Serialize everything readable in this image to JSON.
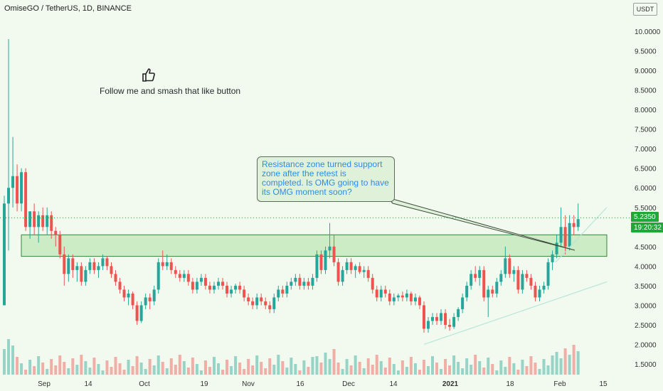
{
  "header": {
    "title": "OmiseGO / TetherUS, 1D, BINANCE"
  },
  "annotations": {
    "follow_text": "Follow me and smash that like button",
    "thumb_icon": "thumbs-up-icon",
    "callout_text": "Resistance zone turned support zone after the retest is completed.  Is OMG going to have its OMG moment soon?"
  },
  "price_axis": {
    "currency": "USDT",
    "last_price": "5.2350",
    "countdown": "19:20:32"
  },
  "colors": {
    "up": "#26a69a",
    "down": "#ef5350",
    "zone_fill": "#c9ecc3",
    "zone_border": "#2e7d32",
    "last_price_tag": "#1ea83a"
  },
  "chart_data": {
    "type": "candlestick",
    "symbol": "OMG/USDT",
    "timeframe": "1D",
    "exchange": "BINANCE",
    "y_ticks": [
      "10.0000",
      "9.5000",
      "9.0000",
      "8.5000",
      "8.0000",
      "7.5000",
      "7.0000",
      "6.5000",
      "6.0000",
      "5.5000",
      "5.0000",
      "4.5000",
      "4.0000",
      "3.5000",
      "3.0000",
      "2.5000",
      "2.0000",
      "1.5000"
    ],
    "x_ticks": [
      "Sep",
      "14",
      "Oct",
      "19",
      "Nov",
      "16",
      "Dec",
      "14",
      "2021",
      "18",
      "Feb",
      "15"
    ],
    "ylim": [
      1.25,
      10.4
    ],
    "resistance_support_zone": [
      4.25,
      4.8
    ],
    "support_trendline": [
      {
        "date": "2020-12-18",
        "price": 2.0
      },
      {
        "date": "2021-02-18",
        "price": 3.6
      }
    ],
    "upper_trendline": [
      {
        "date": "2021-02-03",
        "price": 4.1
      },
      {
        "date": "2021-02-18",
        "price": 5.5
      }
    ],
    "last_price": 5.235,
    "ohlc": [
      [
        3.0,
        5.8,
        3.0,
        5.6
      ],
      [
        5.6,
        9.8,
        4.4,
        6.0
      ],
      [
        6.0,
        7.3,
        5.5,
        6.3
      ],
      [
        6.3,
        6.6,
        5.4,
        5.6
      ],
      [
        5.6,
        6.5,
        5.4,
        6.4
      ],
      [
        6.4,
        6.5,
        4.9,
        5.0
      ],
      [
        5.0,
        5.4,
        4.7,
        5.4
      ],
      [
        5.4,
        5.6,
        4.8,
        5.0
      ],
      [
        5.0,
        5.4,
        4.6,
        5.3
      ],
      [
        5.3,
        5.5,
        4.9,
        5.0
      ],
      [
        5.0,
        5.5,
        4.8,
        5.3
      ],
      [
        5.3,
        5.4,
        4.7,
        4.9
      ],
      [
        4.9,
        5.0,
        4.5,
        4.8
      ],
      [
        4.8,
        4.9,
        4.2,
        4.3
      ],
      [
        4.3,
        4.5,
        3.5,
        3.8
      ],
      [
        3.8,
        4.3,
        3.6,
        4.2
      ],
      [
        4.2,
        4.3,
        3.7,
        3.9
      ],
      [
        3.9,
        4.1,
        3.6,
        4.0
      ],
      [
        4.0,
        4.1,
        3.5,
        3.6
      ],
      [
        3.6,
        4.0,
        3.5,
        3.9
      ],
      [
        3.9,
        4.2,
        3.8,
        4.1
      ],
      [
        4.1,
        4.2,
        3.8,
        3.9
      ],
      [
        3.9,
        4.1,
        3.7,
        4.0
      ],
      [
        4.0,
        4.3,
        3.9,
        4.2
      ],
      [
        4.2,
        4.25,
        3.9,
        4.0
      ],
      [
        4.0,
        4.1,
        3.7,
        3.8
      ],
      [
        3.8,
        3.9,
        3.5,
        3.6
      ],
      [
        3.6,
        3.7,
        3.3,
        3.4
      ],
      [
        3.4,
        3.5,
        3.1,
        3.2
      ],
      [
        3.2,
        3.4,
        3.0,
        3.3
      ],
      [
        3.3,
        3.35,
        2.9,
        3.0
      ],
      [
        3.0,
        3.1,
        2.5,
        2.6
      ],
      [
        2.6,
        3.1,
        2.55,
        3.0
      ],
      [
        3.0,
        3.3,
        2.9,
        3.2
      ],
      [
        3.2,
        3.3,
        2.9,
        3.1
      ],
      [
        3.1,
        3.5,
        3.0,
        3.4
      ],
      [
        3.4,
        4.2,
        3.3,
        4.1
      ],
      [
        4.1,
        4.4,
        3.9,
        4.0
      ],
      [
        4.0,
        4.3,
        3.9,
        4.1
      ],
      [
        4.1,
        4.2,
        3.8,
        3.9
      ],
      [
        3.9,
        4.0,
        3.7,
        3.8
      ],
      [
        3.8,
        3.9,
        3.6,
        3.7
      ],
      [
        3.7,
        3.9,
        3.6,
        3.8
      ],
      [
        3.8,
        3.9,
        3.5,
        3.6
      ],
      [
        3.6,
        3.7,
        3.3,
        3.4
      ],
      [
        3.4,
        3.7,
        3.3,
        3.6
      ],
      [
        3.6,
        3.8,
        3.5,
        3.7
      ],
      [
        3.7,
        3.8,
        3.4,
        3.5
      ],
      [
        3.5,
        3.6,
        3.3,
        3.4
      ],
      [
        3.4,
        3.6,
        3.3,
        3.5
      ],
      [
        3.5,
        3.7,
        3.4,
        3.6
      ],
      [
        3.6,
        3.7,
        3.4,
        3.5
      ],
      [
        3.5,
        3.6,
        3.2,
        3.3
      ],
      [
        3.3,
        3.5,
        3.2,
        3.4
      ],
      [
        3.4,
        3.55,
        3.3,
        3.5
      ],
      [
        3.5,
        3.6,
        3.3,
        3.4
      ],
      [
        3.4,
        3.5,
        3.1,
        3.2
      ],
      [
        3.2,
        3.3,
        3.0,
        3.1
      ],
      [
        3.1,
        3.2,
        2.9,
        3.0
      ],
      [
        3.0,
        3.3,
        2.9,
        3.2
      ],
      [
        3.2,
        3.3,
        3.0,
        3.1
      ],
      [
        3.1,
        3.2,
        2.9,
        3.0
      ],
      [
        3.0,
        3.1,
        2.8,
        2.9
      ],
      [
        2.9,
        3.3,
        2.8,
        3.2
      ],
      [
        3.2,
        3.5,
        3.1,
        3.4
      ],
      [
        3.4,
        3.5,
        3.2,
        3.3
      ],
      [
        3.3,
        3.6,
        3.2,
        3.5
      ],
      [
        3.5,
        3.7,
        3.4,
        3.6
      ],
      [
        3.6,
        3.8,
        3.5,
        3.7
      ],
      [
        3.7,
        3.8,
        3.4,
        3.5
      ],
      [
        3.5,
        3.7,
        3.4,
        3.6
      ],
      [
        3.6,
        3.7,
        3.4,
        3.5
      ],
      [
        3.5,
        3.8,
        3.4,
        3.7
      ],
      [
        3.7,
        4.4,
        3.6,
        4.3
      ],
      [
        4.3,
        4.4,
        3.8,
        3.9
      ],
      [
        3.9,
        4.5,
        3.8,
        4.4
      ],
      [
        4.4,
        5.1,
        4.2,
        4.5
      ],
      [
        4.5,
        4.8,
        4.0,
        4.1
      ],
      [
        4.1,
        4.2,
        3.5,
        3.6
      ],
      [
        3.6,
        4.0,
        3.5,
        3.9
      ],
      [
        3.9,
        4.2,
        3.8,
        4.1
      ],
      [
        4.1,
        4.2,
        3.8,
        3.9
      ],
      [
        3.9,
        4.05,
        3.7,
        4.0
      ],
      [
        4.0,
        4.1,
        3.8,
        3.85
      ],
      [
        3.85,
        4.0,
        3.7,
        3.9
      ],
      [
        3.9,
        4.0,
        3.6,
        3.7
      ],
      [
        3.7,
        3.8,
        3.3,
        3.4
      ],
      [
        3.4,
        3.5,
        3.1,
        3.2
      ],
      [
        3.2,
        3.5,
        3.1,
        3.4
      ],
      [
        3.4,
        3.5,
        3.2,
        3.3
      ],
      [
        3.3,
        3.4,
        3.0,
        3.1
      ],
      [
        3.1,
        3.3,
        3.0,
        3.2
      ],
      [
        3.2,
        3.3,
        3.1,
        3.25
      ],
      [
        3.25,
        3.35,
        3.1,
        3.2
      ],
      [
        3.2,
        3.4,
        3.1,
        3.3
      ],
      [
        3.3,
        3.35,
        3.0,
        3.1
      ],
      [
        3.1,
        3.3,
        3.0,
        3.2
      ],
      [
        3.2,
        3.25,
        2.9,
        3.0
      ],
      [
        3.0,
        3.1,
        2.3,
        2.4
      ],
      [
        2.4,
        2.7,
        2.3,
        2.6
      ],
      [
        2.6,
        2.8,
        2.5,
        2.7
      ],
      [
        2.7,
        2.8,
        2.5,
        2.6
      ],
      [
        2.6,
        2.9,
        2.5,
        2.8
      ],
      [
        2.8,
        2.9,
        2.4,
        2.5
      ],
      [
        2.5,
        2.65,
        2.35,
        2.45
      ],
      [
        2.45,
        2.8,
        2.4,
        2.7
      ],
      [
        2.7,
        2.95,
        2.6,
        2.9
      ],
      [
        2.9,
        3.3,
        2.8,
        3.2
      ],
      [
        3.2,
        3.6,
        3.1,
        3.5
      ],
      [
        3.5,
        3.9,
        3.4,
        3.8
      ],
      [
        3.8,
        4.0,
        3.6,
        3.7
      ],
      [
        3.7,
        4.0,
        3.5,
        3.9
      ],
      [
        3.9,
        4.0,
        3.1,
        3.2
      ],
      [
        3.2,
        3.5,
        2.7,
        3.4
      ],
      [
        3.4,
        3.5,
        3.2,
        3.3
      ],
      [
        3.3,
        3.7,
        3.2,
        3.6
      ],
      [
        3.6,
        3.9,
        3.5,
        3.8
      ],
      [
        3.8,
        4.5,
        3.7,
        4.2
      ],
      [
        4.2,
        4.3,
        3.7,
        3.8
      ],
      [
        3.8,
        4.0,
        3.6,
        3.9
      ],
      [
        3.9,
        4.0,
        3.3,
        3.4
      ],
      [
        3.4,
        3.9,
        3.3,
        3.8
      ],
      [
        3.8,
        3.9,
        3.6,
        3.7
      ],
      [
        3.7,
        3.8,
        3.4,
        3.5
      ],
      [
        3.5,
        3.6,
        3.1,
        3.2
      ],
      [
        3.2,
        3.5,
        3.1,
        3.4
      ],
      [
        3.4,
        3.6,
        3.3,
        3.5
      ],
      [
        3.5,
        4.2,
        3.4,
        4.1
      ],
      [
        4.1,
        4.4,
        3.9,
        4.3
      ],
      [
        4.3,
        4.8,
        4.2,
        4.6
      ],
      [
        4.6,
        5.5,
        4.5,
        5.0
      ],
      [
        5.0,
        5.3,
        4.3,
        4.5
      ],
      [
        4.5,
        5.3,
        4.4,
        5.1
      ],
      [
        5.1,
        5.3,
        4.8,
        5.0
      ],
      [
        5.0,
        5.6,
        4.9,
        5.2
      ]
    ]
  }
}
